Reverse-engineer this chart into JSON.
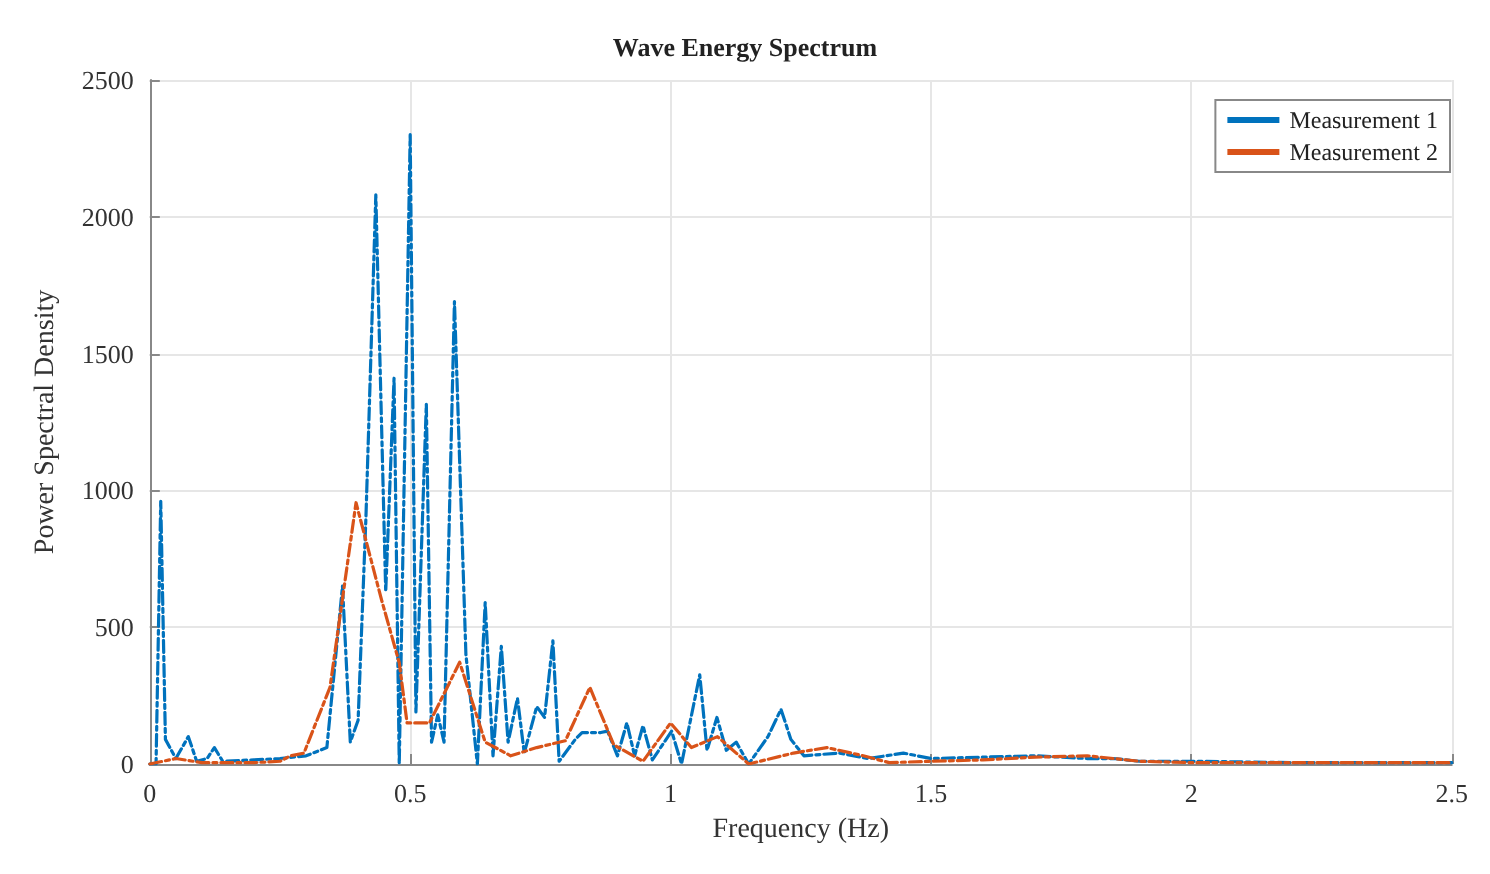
{
  "chart_data": {
    "type": "line",
    "title": "Wave Energy Spectrum",
    "xlabel": "Frequency (Hz)",
    "ylabel": "Power Spectral Density",
    "xlim": [
      0,
      2.5
    ],
    "xticks": [
      0,
      0.5,
      1,
      1.5,
      2,
      2.5
    ],
    "ylim": [
      0,
      2500
    ],
    "yticks": [
      0,
      500,
      1000,
      1500,
      2000,
      2500
    ],
    "grid": true,
    "legend": "top right",
    "marker": "none",
    "line_style": "dashed",
    "series": [
      {
        "name": "Measurement 1",
        "color": "#0072bd",
        "x": [
          0,
          0.012,
          0.021,
          0.03,
          0.05,
          0.074,
          0.09,
          0.11,
          0.124,
          0.14,
          0.2,
          0.25,
          0.3,
          0.34,
          0.37,
          0.385,
          0.4,
          0.415,
          0.434,
          0.453,
          0.469,
          0.479,
          0.5,
          0.511,
          0.531,
          0.541,
          0.553,
          0.565,
          0.585,
          0.607,
          0.629,
          0.644,
          0.659,
          0.675,
          0.688,
          0.706,
          0.719,
          0.743,
          0.758,
          0.774,
          0.786,
          0.817,
          0.83,
          0.866,
          0.879,
          0.898,
          0.916,
          0.931,
          0.947,
          0.965,
          1.002,
          1.021,
          1.056,
          1.07,
          1.089,
          1.107,
          1.126,
          1.15,
          1.187,
          1.212,
          1.231,
          1.256,
          1.324,
          1.38,
          1.447,
          1.5,
          1.6,
          1.7,
          1.8,
          1.85,
          1.9,
          2.0,
          2.2,
          2.5
        ],
        "values": [
          0,
          0,
          960,
          90,
          20,
          100,
          10,
          20,
          60,
          10,
          15,
          20,
          30,
          60,
          650,
          80,
          160,
          900,
          2080,
          630,
          1410,
          0,
          2300,
          190,
          1315,
          80,
          180,
          80,
          1690,
          400,
          0,
          590,
          30,
          430,
          80,
          240,
          40,
          210,
          170,
          450,
          10,
          90,
          115,
          115,
          120,
          30,
          150,
          30,
          140,
          15,
          120,
          0,
          326,
          50,
          170,
          50,
          80,
          0,
          100,
          200,
          90,
          30,
          40,
          20,
          40,
          20,
          25,
          30,
          20,
          20,
          10,
          10,
          5,
          5
        ]
      },
      {
        "name": "Measurement 2",
        "color": "#d95319",
        "x": [
          0,
          0.05,
          0.1,
          0.15,
          0.2,
          0.25,
          0.27,
          0.296,
          0.346,
          0.396,
          0.445,
          0.479,
          0.494,
          0.537,
          0.595,
          0.644,
          0.693,
          0.743,
          0.798,
          0.845,
          0.891,
          0.947,
          1.0,
          1.04,
          1.09,
          1.15,
          1.236,
          1.3,
          1.37,
          1.42,
          1.5,
          1.6,
          1.7,
          1.8,
          1.9,
          2.0,
          2.2,
          2.5
        ],
        "values": [
          0,
          20,
          5,
          5,
          5,
          10,
          30,
          40,
          280,
          955,
          600,
          370,
          150,
          150,
          372,
          80,
          30,
          60,
          85,
          280,
          70,
          10,
          150,
          60,
          100,
          0,
          40,
          60,
          30,
          5,
          10,
          15,
          25,
          30,
          10,
          5,
          5,
          5
        ]
      }
    ]
  }
}
